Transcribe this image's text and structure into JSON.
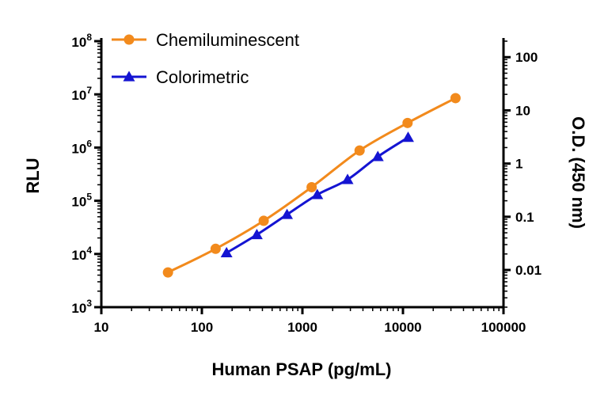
{
  "chart_data": {
    "type": "line",
    "xlabel": "Human PSAP (pg/mL)",
    "ylabel_left": "RLU",
    "ylabel_right": "O.D. (450 nm)",
    "x_scale": "log",
    "y_left_scale": "log",
    "y_right_scale": "log",
    "xlim": [
      10,
      100000
    ],
    "ylim_left": [
      1000,
      100000000
    ],
    "ylim_right": [
      0.002,
      200
    ],
    "x_ticks": [
      "10",
      "100",
      "1000",
      "10000",
      "100000"
    ],
    "y_left_ticks": [
      {
        "base": "10",
        "exp": "3"
      },
      {
        "base": "10",
        "exp": "4"
      },
      {
        "base": "10",
        "exp": "5"
      },
      {
        "base": "10",
        "exp": "6"
      },
      {
        "base": "10",
        "exp": "7"
      },
      {
        "base": "10",
        "exp": "8"
      }
    ],
    "y_right_ticks": [
      "0.01",
      "0.1",
      "1",
      "10",
      "100"
    ],
    "legend_position": "top-left",
    "grid": false,
    "series": [
      {
        "name": "Chemiluminescent",
        "axis": "left",
        "color": "#f28a1c",
        "marker": "circle",
        "x": [
          46,
          137,
          412,
          1235,
          3704,
          11111,
          33333
        ],
        "y": [
          4500,
          12500,
          42000,
          180000,
          880000,
          2900000,
          8500000
        ]
      },
      {
        "name": "Colorimetric",
        "axis": "right",
        "color": "#1414d2",
        "marker": "triangle",
        "x": [
          176,
          352,
          703,
          1406,
          2813,
          5625,
          11250
        ],
        "y": [
          0.021,
          0.046,
          0.11,
          0.26,
          0.5,
          1.35,
          3.1
        ]
      }
    ]
  }
}
